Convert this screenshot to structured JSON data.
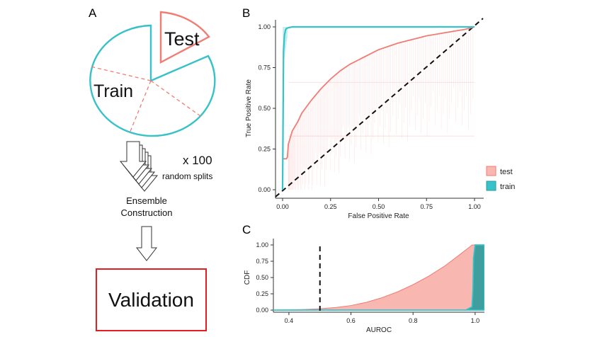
{
  "panels": {
    "a": {
      "letter": "A",
      "test_label": "Test",
      "train_label": "Train",
      "repeat_count": "x 100",
      "repeat_caption": "random splits",
      "ensemble_line1": "Ensemble",
      "ensemble_line2": "Construction",
      "validation_label": "Validation"
    },
    "b": {
      "letter": "B"
    },
    "c": {
      "letter": "C"
    }
  },
  "colors": {
    "test": "#f07c74",
    "test_fill": "#f8b7b1",
    "train": "#36c2c8",
    "train_fill": "#2a9c9c",
    "validation_border": "#e02020",
    "diagonal": "#111111"
  },
  "chart_data": [
    {
      "type": "line",
      "panel": "B",
      "xlabel": "False Positive Rate",
      "ylabel": "True Positive Rate",
      "xlim": [
        0,
        1
      ],
      "ylim": [
        0,
        1
      ],
      "xticks": [
        "0.00",
        "0.25",
        "0.50",
        "0.75",
        "1.00"
      ],
      "yticks": [
        "0.00",
        "0.25",
        "0.50",
        "0.75",
        "1.00"
      ],
      "legend": {
        "placement": "right",
        "entries": [
          "test",
          "train"
        ]
      },
      "series": [
        {
          "name": "test",
          "x": [
            0.0,
            0.02,
            0.025,
            0.03,
            0.05,
            0.08,
            0.1,
            0.15,
            0.2,
            0.25,
            0.3,
            0.35,
            0.4,
            0.45,
            0.5,
            0.55,
            0.6,
            0.65,
            0.7,
            0.75,
            0.8,
            0.85,
            0.9,
            0.95,
            1.0
          ],
          "y": [
            0.19,
            0.19,
            0.2,
            0.28,
            0.36,
            0.42,
            0.47,
            0.55,
            0.62,
            0.68,
            0.73,
            0.77,
            0.8,
            0.83,
            0.86,
            0.88,
            0.9,
            0.915,
            0.93,
            0.945,
            0.955,
            0.965,
            0.975,
            0.985,
            1.0
          ]
        },
        {
          "name": "train",
          "x": [
            0.0,
            0.005,
            0.01,
            0.015,
            0.02,
            0.03,
            0.05,
            0.1,
            1.0
          ],
          "y": [
            0.0,
            0.85,
            0.95,
            0.98,
            0.99,
            0.995,
            1.0,
            1.0,
            1.0
          ]
        },
        {
          "name": "chance",
          "x": [
            0,
            1
          ],
          "y": [
            0,
            1
          ]
        }
      ]
    },
    {
      "type": "area",
      "panel": "C",
      "xlabel": "AUROC",
      "ylabel": "CDF",
      "xlim": [
        0.35,
        1.03
      ],
      "ylim": [
        0,
        1
      ],
      "xticks": [
        "0.4",
        "0.6",
        "0.8",
        "1.0"
      ],
      "yticks": [
        "0.00",
        "0.25",
        "0.50",
        "0.75",
        "1.00"
      ],
      "reference_x": 0.5,
      "series": [
        {
          "name": "test",
          "x": [
            0.35,
            0.45,
            0.5,
            0.55,
            0.6,
            0.65,
            0.7,
            0.75,
            0.8,
            0.85,
            0.9,
            0.95,
            0.985,
            0.99,
            1.03
          ],
          "y": [
            0.0,
            0.01,
            0.02,
            0.04,
            0.07,
            0.12,
            0.19,
            0.28,
            0.39,
            0.52,
            0.67,
            0.85,
            0.98,
            1.0,
            1.0
          ]
        },
        {
          "name": "train",
          "x": [
            0.35,
            0.97,
            0.99,
            0.993,
            0.995,
            1.0,
            1.03
          ],
          "y": [
            0.0,
            0.0,
            0.05,
            0.3,
            0.8,
            1.0,
            1.0
          ]
        }
      ]
    }
  ]
}
